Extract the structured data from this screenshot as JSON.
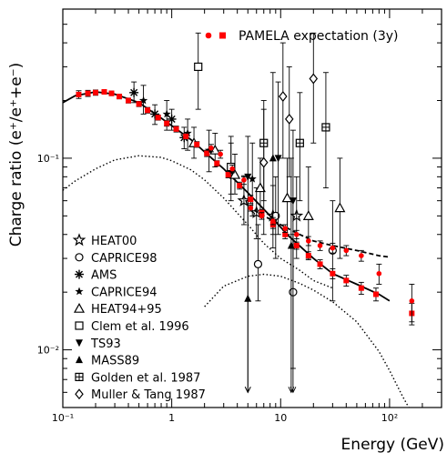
{
  "chart_data": {
    "type": "scatter",
    "xlabel": "Energy (GeV)",
    "ylabel": "Charge ratio (e⁺/e⁺+e⁻)",
    "x_scale": "log",
    "y_scale": "log",
    "xlim": [
      0.1,
      300
    ],
    "ylim": [
      0.005,
      0.6
    ],
    "x_ticks": [
      {
        "value": 0.1,
        "label": "10⁻¹"
      },
      {
        "value": 1,
        "label": "1"
      },
      {
        "value": 10,
        "label": "10"
      },
      {
        "value": 100,
        "label": "10²"
      }
    ],
    "y_ticks": [
      {
        "value": 0.01,
        "label": "10⁻²"
      },
      {
        "value": 0.1,
        "label": "10⁻¹"
      }
    ],
    "grid": false,
    "legend_position": "bottom-left",
    "top_legend": {
      "label": "PAMELA expectation (3y)",
      "color": "#ff0000"
    },
    "legend": [
      {
        "label": "HEAT00",
        "marker": "star-open"
      },
      {
        "label": "CAPRICE98",
        "marker": "circle-open"
      },
      {
        "label": "AMS",
        "marker": "asterisk"
      },
      {
        "label": "CAPRICE94",
        "marker": "star-small"
      },
      {
        "label": "HEAT94+95",
        "marker": "triangle-open"
      },
      {
        "label": "Clem et al. 1996",
        "marker": "square-open"
      },
      {
        "label": "TS93",
        "marker": "triangle-down-filled"
      },
      {
        "label": "MASS89",
        "marker": "triangle-up-filled"
      },
      {
        "label": "Golden et al. 1987",
        "marker": "square-cross"
      },
      {
        "label": "Muller & Tang 1987",
        "marker": "diamond-open"
      }
    ],
    "curves": [
      {
        "style": "solid",
        "points": [
          [
            0.1,
            0.195
          ],
          [
            0.13,
            0.212
          ],
          [
            0.2,
            0.222
          ],
          [
            0.3,
            0.216
          ],
          [
            0.5,
            0.195
          ],
          [
            0.8,
            0.162
          ],
          [
            1.0,
            0.148
          ],
          [
            1.5,
            0.125
          ],
          [
            2.0,
            0.108
          ],
          [
            3.0,
            0.088
          ],
          [
            5.0,
            0.066
          ],
          [
            8.0,
            0.05
          ],
          [
            12.0,
            0.039
          ],
          [
            20.0,
            0.03
          ],
          [
            30.0,
            0.025
          ],
          [
            50.0,
            0.022
          ],
          [
            80.0,
            0.0195
          ],
          [
            100.0,
            0.018
          ]
        ]
      },
      {
        "style": "dashed",
        "points": [
          [
            5.0,
            0.056
          ],
          [
            7.0,
            0.05
          ],
          [
            10.0,
            0.045
          ],
          [
            15.0,
            0.04
          ],
          [
            20.0,
            0.037
          ],
          [
            30.0,
            0.035
          ],
          [
            50.0,
            0.033
          ],
          [
            80.0,
            0.031
          ],
          [
            100.0,
            0.0305
          ]
        ]
      },
      {
        "style": "dotted",
        "points": [
          [
            0.1,
            0.068
          ],
          [
            0.13,
            0.076
          ],
          [
            0.2,
            0.088
          ],
          [
            0.3,
            0.098
          ],
          [
            0.5,
            0.103
          ],
          [
            0.8,
            0.101
          ],
          [
            1.0,
            0.097
          ],
          [
            1.5,
            0.087
          ],
          [
            2.0,
            0.077
          ],
          [
            3.0,
            0.062
          ],
          [
            5.0,
            0.045
          ],
          [
            7.0,
            0.036
          ],
          [
            10.0,
            0.03
          ],
          [
            15.0,
            0.026
          ],
          [
            20.0,
            0.023
          ],
          [
            30.0,
            0.021
          ]
        ]
      },
      {
        "style": "dotted",
        "points": [
          [
            2.0,
            0.0168
          ],
          [
            3.0,
            0.0215
          ],
          [
            5.0,
            0.0242
          ],
          [
            7.0,
            0.0248
          ],
          [
            10.0,
            0.0242
          ],
          [
            15.0,
            0.0222
          ],
          [
            20.0,
            0.0205
          ],
          [
            30.0,
            0.0178
          ],
          [
            50.0,
            0.014
          ],
          [
            80.0,
            0.0098
          ],
          [
            100.0,
            0.0078
          ],
          [
            130.0,
            0.0058
          ],
          [
            150.0,
            0.005
          ]
        ]
      }
    ],
    "pamela_points": [
      {
        "x": 0.14,
        "y": 0.215,
        "err": 0.01,
        "shape": "square"
      },
      {
        "x": 0.17,
        "y": 0.218,
        "err": 0.008,
        "shape": "square"
      },
      {
        "x": 0.2,
        "y": 0.22,
        "err": 0.007,
        "shape": "square"
      },
      {
        "x": 0.24,
        "y": 0.222,
        "err": 0.006,
        "shape": "square"
      },
      {
        "x": 0.28,
        "y": 0.218,
        "err": 0.006,
        "shape": "square"
      },
      {
        "x": 0.33,
        "y": 0.21,
        "err": 0.006,
        "shape": "square"
      },
      {
        "x": 0.4,
        "y": 0.2,
        "err": 0.006,
        "shape": "square"
      },
      {
        "x": 0.5,
        "y": 0.192,
        "err": 0.006,
        "shape": "square"
      },
      {
        "x": 0.6,
        "y": 0.178,
        "err": 0.006,
        "shape": "square"
      },
      {
        "x": 0.75,
        "y": 0.163,
        "err": 0.005,
        "shape": "square"
      },
      {
        "x": 0.9,
        "y": 0.152,
        "err": 0.005,
        "shape": "square"
      },
      {
        "x": 1.1,
        "y": 0.142,
        "err": 0.005,
        "shape": "square"
      },
      {
        "x": 1.35,
        "y": 0.13,
        "err": 0.004,
        "shape": "square"
      },
      {
        "x": 1.7,
        "y": 0.118,
        "err": 0.004,
        "shape": "square"
      },
      {
        "x": 2.1,
        "y": 0.106,
        "err": 0.004,
        "shape": "square"
      },
      {
        "x": 2.6,
        "y": 0.094,
        "err": 0.003,
        "shape": "square"
      },
      {
        "x": 3.3,
        "y": 0.082,
        "err": 0.003,
        "shape": "square"
      },
      {
        "x": 4.2,
        "y": 0.072,
        "err": 0.003,
        "shape": "square"
      },
      {
        "x": 5.3,
        "y": 0.061,
        "err": 0.003,
        "shape": "square"
      },
      {
        "x": 6.7,
        "y": 0.052,
        "err": 0.002,
        "shape": "square"
      },
      {
        "x": 8.5,
        "y": 0.045,
        "err": 0.002,
        "shape": "square"
      },
      {
        "x": 11,
        "y": 0.04,
        "err": 0.002,
        "shape": "square"
      },
      {
        "x": 14,
        "y": 0.035,
        "err": 0.0015,
        "shape": "square"
      },
      {
        "x": 18,
        "y": 0.031,
        "err": 0.0015,
        "shape": "square"
      },
      {
        "x": 23,
        "y": 0.028,
        "err": 0.0015,
        "shape": "square"
      },
      {
        "x": 30,
        "y": 0.025,
        "err": 0.0015,
        "shape": "square"
      },
      {
        "x": 40,
        "y": 0.023,
        "err": 0.0015,
        "shape": "square"
      },
      {
        "x": 55,
        "y": 0.021,
        "err": 0.0015,
        "shape": "square"
      },
      {
        "x": 75,
        "y": 0.0195,
        "err": 0.0015,
        "shape": "square"
      },
      {
        "x": 160,
        "y": 0.0155,
        "err": 0.002,
        "shape": "square"
      },
      {
        "x": 5.3,
        "y": 0.055,
        "err": 0.002,
        "shape": "circle"
      },
      {
        "x": 6.7,
        "y": 0.05,
        "err": 0.002,
        "shape": "circle"
      },
      {
        "x": 8.5,
        "y": 0.047,
        "err": 0.002,
        "shape": "circle"
      },
      {
        "x": 11,
        "y": 0.043,
        "err": 0.002,
        "shape": "circle"
      },
      {
        "x": 14,
        "y": 0.04,
        "err": 0.002,
        "shape": "circle"
      },
      {
        "x": 18,
        "y": 0.037,
        "err": 0.002,
        "shape": "circle"
      },
      {
        "x": 23,
        "y": 0.035,
        "err": 0.002,
        "shape": "circle"
      },
      {
        "x": 30,
        "y": 0.034,
        "err": 0.002,
        "shape": "circle"
      },
      {
        "x": 40,
        "y": 0.033,
        "err": 0.002,
        "shape": "circle"
      },
      {
        "x": 55,
        "y": 0.031,
        "err": 0.002,
        "shape": "circle"
      },
      {
        "x": 80,
        "y": 0.025,
        "err": 0.003,
        "shape": "circle"
      },
      {
        "x": 160,
        "y": 0.018,
        "err": 0.004,
        "shape": "circle"
      },
      {
        "x": 2.3,
        "y": 0.113,
        "err": 0.005,
        "shape": "circle"
      },
      {
        "x": 2.8,
        "y": 0.105,
        "err": 0.005,
        "shape": "circle"
      },
      {
        "x": 3.6,
        "y": 0.088,
        "err": 0.004,
        "shape": "circle"
      },
      {
        "x": 4.6,
        "y": 0.077,
        "err": 0.004,
        "shape": "circle"
      }
    ],
    "experiments": [
      {
        "marker": "star-open",
        "points": [
          {
            "x": 4.6,
            "y": 0.06,
            "ylo": 0.045,
            "yhi": 0.08
          },
          {
            "x": 6.0,
            "y": 0.052,
            "ylo": 0.038,
            "yhi": 0.07
          },
          {
            "x": 8.5,
            "y": 0.05,
            "ylo": 0.034,
            "yhi": 0.072
          },
          {
            "x": 14.0,
            "y": 0.05,
            "ylo": 0.03,
            "yhi": 0.08
          }
        ]
      },
      {
        "marker": "circle-open",
        "points": [
          {
            "x": 6.2,
            "y": 0.028,
            "ylo": 0.018,
            "yhi": 0.045
          },
          {
            "x": 9.0,
            "y": 0.05,
            "ylo": 0.03,
            "yhi": 0.08
          },
          {
            "x": 13.0,
            "y": 0.02,
            "ylo": 0.008,
            "yhi": 0.04
          },
          {
            "x": 30.0,
            "y": 0.033,
            "ylo": 0.018,
            "yhi": 0.06
          }
        ]
      },
      {
        "marker": "asterisk",
        "points": [
          {
            "x": 0.45,
            "y": 0.22,
            "ylo": 0.195,
            "yhi": 0.25
          },
          {
            "x": 0.7,
            "y": 0.17,
            "ylo": 0.15,
            "yhi": 0.19
          },
          {
            "x": 1.0,
            "y": 0.16,
            "ylo": 0.14,
            "yhi": 0.18
          },
          {
            "x": 1.3,
            "y": 0.128,
            "ylo": 0.112,
            "yhi": 0.145
          }
        ]
      },
      {
        "marker": "star-small",
        "points": [
          {
            "x": 0.55,
            "y": 0.2,
            "ylo": 0.17,
            "yhi": 0.24
          },
          {
            "x": 0.9,
            "y": 0.17,
            "ylo": 0.14,
            "yhi": 0.2
          },
          {
            "x": 1.4,
            "y": 0.135,
            "ylo": 0.11,
            "yhi": 0.16
          },
          {
            "x": 2.2,
            "y": 0.11,
            "ylo": 0.085,
            "yhi": 0.14
          },
          {
            "x": 3.5,
            "y": 0.085,
            "ylo": 0.06,
            "yhi": 0.12
          },
          {
            "x": 5.5,
            "y": 0.078,
            "ylo": 0.05,
            "yhi": 0.12
          }
        ]
      },
      {
        "marker": "triangle-open",
        "points": [
          {
            "x": 1.6,
            "y": 0.12,
            "ylo": 0.1,
            "yhi": 0.145
          },
          {
            "x": 2.5,
            "y": 0.11,
            "ylo": 0.09,
            "yhi": 0.135
          },
          {
            "x": 3.8,
            "y": 0.082,
            "ylo": 0.065,
            "yhi": 0.105
          },
          {
            "x": 6.5,
            "y": 0.07,
            "ylo": 0.05,
            "yhi": 0.1
          },
          {
            "x": 11.5,
            "y": 0.062,
            "ylo": 0.04,
            "yhi": 0.1
          },
          {
            "x": 18.0,
            "y": 0.05,
            "ylo": 0.03,
            "yhi": 0.09
          },
          {
            "x": 35.0,
            "y": 0.055,
            "ylo": 0.03,
            "yhi": 0.1
          }
        ]
      },
      {
        "marker": "square-open",
        "points": [
          {
            "x": 1.75,
            "y": 0.3,
            "ylo": 0.18,
            "yhi": 0.45
          },
          {
            "x": 3.5,
            "y": 0.09,
            "ylo": 0.065,
            "yhi": 0.13
          }
        ]
      },
      {
        "marker": "triangle-down-filled",
        "points": [
          {
            "x": 5.0,
            "y": 0.08,
            "ylo": 0.006,
            "yhi": 0.13
          },
          {
            "x": 9.5,
            "y": 0.1,
            "ylo": 0.04,
            "yhi": 0.25
          },
          {
            "x": 13.0,
            "y": 0.06,
            "ylo": 0.006,
            "yhi": 0.14
          }
        ]
      },
      {
        "marker": "triangle-up-filled",
        "points": [
          {
            "x": 5.0,
            "y": 0.0185,
            "ylo": 0.006,
            "yhi": 0.06
          },
          {
            "x": 8.5,
            "y": 0.1,
            "ylo": 0.04,
            "yhi": 0.28
          },
          {
            "x": 12.5,
            "y": 0.035,
            "ylo": 0.006,
            "yhi": 0.1
          }
        ]
      },
      {
        "marker": "square-cross",
        "points": [
          {
            "x": 7.0,
            "y": 0.12,
            "ylo": 0.06,
            "yhi": 0.2
          },
          {
            "x": 15.0,
            "y": 0.12,
            "ylo": 0.06,
            "yhi": 0.22
          },
          {
            "x": 26.0,
            "y": 0.145,
            "ylo": 0.07,
            "yhi": 0.28
          }
        ]
      },
      {
        "marker": "diamond-open",
        "points": [
          {
            "x": 7.0,
            "y": 0.095,
            "ylo": 0.04,
            "yhi": 0.18
          },
          {
            "x": 10.5,
            "y": 0.21,
            "ylo": 0.1,
            "yhi": 0.4
          },
          {
            "x": 12.0,
            "y": 0.16,
            "ylo": 0.08,
            "yhi": 0.3
          },
          {
            "x": 20.0,
            "y": 0.26,
            "ylo": 0.12,
            "yhi": 0.45
          }
        ]
      }
    ]
  }
}
